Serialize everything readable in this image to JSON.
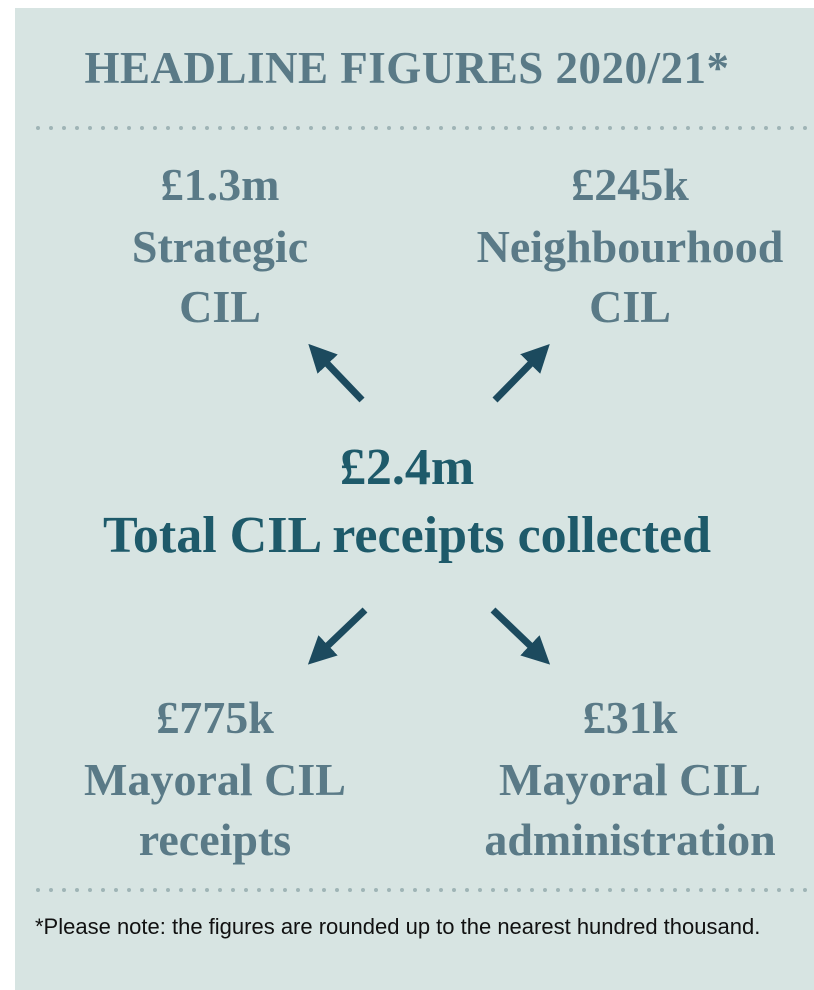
{
  "title": "HEADLINE FIGURES 2020/21*",
  "center": {
    "amount": "£2.4m",
    "label": "Total CIL receipts collected"
  },
  "items": [
    {
      "amount": "£1.3m",
      "label": [
        "Strategic",
        "CIL"
      ]
    },
    {
      "amount": "£245k",
      "label": [
        "Neighbourhood",
        "CIL"
      ]
    },
    {
      "amount": "£775k",
      "label": [
        "Mayoral CIL",
        "receipts"
      ]
    },
    {
      "amount": "£31k",
      "label": [
        "Mayoral CIL",
        "administration"
      ]
    }
  ],
  "note": "*Please note: the figures are rounded up to the nearest hundred thousand."
}
